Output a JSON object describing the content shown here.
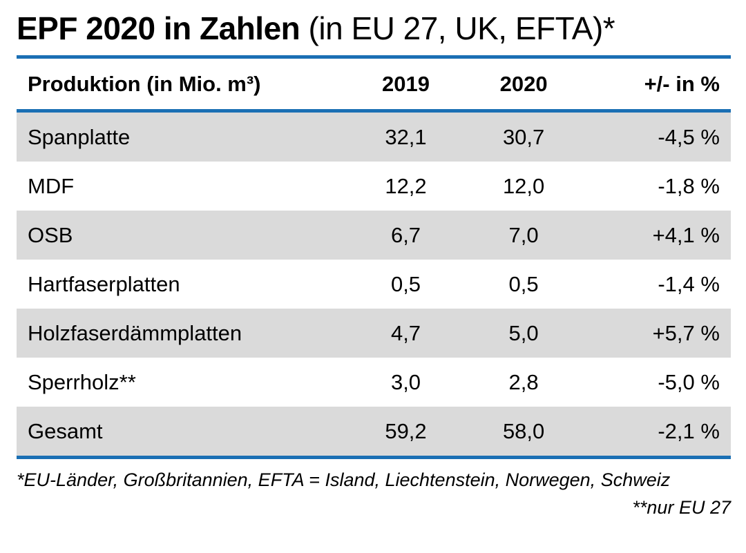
{
  "colors": {
    "accent": "#1a6fb4",
    "row_alt": "#dadada"
  },
  "title": {
    "bold": "EPF 2020 in Zahlen",
    "regular": " (in EU 27, UK, EFTA)*"
  },
  "table": {
    "headers": [
      "Produktion (in Mio. m³)",
      "2019",
      "2020",
      "+/- in %"
    ],
    "rows": [
      {
        "label": "Spanplatte",
        "v2019": "32,1",
        "v2020": "30,7",
        "change": "-4,5 %"
      },
      {
        "label": "MDF",
        "v2019": "12,2",
        "v2020": "12,0",
        "change": "-1,8 %"
      },
      {
        "label": "OSB",
        "v2019": "6,7",
        "v2020": "7,0",
        "change": "+4,1 %"
      },
      {
        "label": "Hartfaserplatten",
        "v2019": "0,5",
        "v2020": "0,5",
        "change": "-1,4 %"
      },
      {
        "label": "Holzfaserdämmplatten",
        "v2019": "4,7",
        "v2020": "5,0",
        "change": "+5,7 %"
      },
      {
        "label": "Sperrholz**",
        "v2019": "3,0",
        "v2020": "2,8",
        "change": "-5,0 %"
      },
      {
        "label": "Gesamt",
        "v2019": "59,2",
        "v2020": "58,0",
        "change": "-2,1 %"
      }
    ]
  },
  "footnotes": {
    "line1": "*EU-Länder, Großbritannien, EFTA = Island, Liechtenstein, Norwegen, Schweiz",
    "line2": "**nur EU 27"
  },
  "chart_data": {
    "type": "table",
    "title": "EPF 2020 in Zahlen (in EU 27, UK, EFTA)*",
    "columns": [
      "Produktion (in Mio. m³)",
      "2019",
      "2020",
      "+/- in %"
    ],
    "rows": [
      [
        "Spanplatte",
        32.1,
        30.7,
        "-4,5 %"
      ],
      [
        "MDF",
        12.2,
        12.0,
        "-1,8 %"
      ],
      [
        "OSB",
        6.7,
        7.0,
        "+4,1 %"
      ],
      [
        "Hartfaserplatten",
        0.5,
        0.5,
        "-1,4 %"
      ],
      [
        "Holzfaserdämmplatten",
        4.7,
        5.0,
        "+5,7 %"
      ],
      [
        "Sperrholz**",
        3.0,
        2.8,
        "-5,0 %"
      ],
      [
        "Gesamt",
        59.2,
        58.0,
        "-2,1 %"
      ]
    ],
    "notes": [
      "*EU-Länder, Großbritannien, EFTA = Island, Liechtenstein, Norwegen, Schweiz",
      "**nur EU 27"
    ],
    "units": "Mio. m³"
  }
}
